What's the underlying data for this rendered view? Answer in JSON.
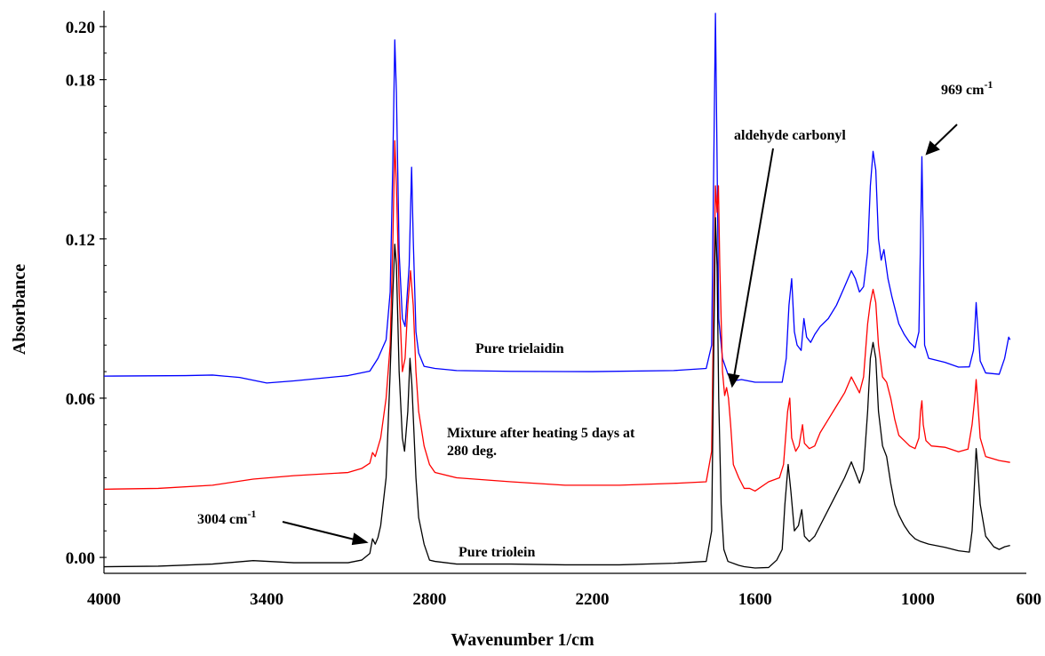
{
  "chart_data": {
    "type": "line",
    "title": "",
    "xlabel": "Wavenumber 1/cm",
    "ylabel": "Absorbance",
    "xlim": [
      4000,
      600
    ],
    "ylim": [
      -0.006,
      0.206
    ],
    "x_ticks": [
      4000,
      3400,
      2800,
      2200,
      1600,
      1000,
      600
    ],
    "x_tick_labels": [
      "4000",
      "3400",
      "2800",
      "2200",
      "1600",
      "1000",
      "600"
    ],
    "y_ticks": [
      0.0,
      0.06,
      0.12,
      0.18,
      0.2
    ],
    "y_tick_labels": [
      "0.00",
      "0.06",
      "0.12",
      "0.18",
      "0.20"
    ],
    "grid": false,
    "legend": "none",
    "series": [
      {
        "label_text": "Pure trielaidin",
        "color": "#0000ff",
        "points": [
          [
            4000,
            0.0683
          ],
          [
            3700,
            0.0685
          ],
          [
            3600,
            0.0687
          ],
          [
            3500,
            0.0678
          ],
          [
            3400,
            0.0657
          ],
          [
            3300,
            0.0665
          ],
          [
            3100,
            0.0685
          ],
          [
            3020,
            0.0702
          ],
          [
            2990,
            0.075
          ],
          [
            2960,
            0.082
          ],
          [
            2945,
            0.1
          ],
          [
            2935,
            0.15
          ],
          [
            2928,
            0.195
          ],
          [
            2922,
            0.175
          ],
          [
            2912,
            0.115
          ],
          [
            2900,
            0.09
          ],
          [
            2890,
            0.087
          ],
          [
            2875,
            0.11
          ],
          [
            2866,
            0.147
          ],
          [
            2860,
            0.12
          ],
          [
            2850,
            0.085
          ],
          [
            2840,
            0.077
          ],
          [
            2820,
            0.072
          ],
          [
            2780,
            0.0712
          ],
          [
            2700,
            0.0704
          ],
          [
            2500,
            0.0701
          ],
          [
            2200,
            0.07
          ],
          [
            1900,
            0.0704
          ],
          [
            1780,
            0.0712
          ],
          [
            1760,
            0.08
          ],
          [
            1752,
            0.15
          ],
          [
            1746,
            0.205
          ],
          [
            1740,
            0.15
          ],
          [
            1734,
            0.09
          ],
          [
            1720,
            0.075
          ],
          [
            1700,
            0.069
          ],
          [
            1680,
            0.0665
          ],
          [
            1650,
            0.067
          ],
          [
            1600,
            0.066
          ],
          [
            1500,
            0.066
          ],
          [
            1485,
            0.075
          ],
          [
            1475,
            0.095
          ],
          [
            1465,
            0.105
          ],
          [
            1455,
            0.085
          ],
          [
            1445,
            0.08
          ],
          [
            1430,
            0.078
          ],
          [
            1420,
            0.09
          ],
          [
            1410,
            0.083
          ],
          [
            1395,
            0.081
          ],
          [
            1380,
            0.084
          ],
          [
            1360,
            0.087
          ],
          [
            1330,
            0.09
          ],
          [
            1300,
            0.095
          ],
          [
            1270,
            0.102
          ],
          [
            1245,
            0.108
          ],
          [
            1230,
            0.105
          ],
          [
            1215,
            0.1
          ],
          [
            1200,
            0.102
          ],
          [
            1185,
            0.115
          ],
          [
            1175,
            0.14
          ],
          [
            1165,
            0.153
          ],
          [
            1155,
            0.146
          ],
          [
            1145,
            0.12
          ],
          [
            1135,
            0.112
          ],
          [
            1125,
            0.116
          ],
          [
            1110,
            0.105
          ],
          [
            1095,
            0.098
          ],
          [
            1070,
            0.088
          ],
          [
            1050,
            0.084
          ],
          [
            1030,
            0.081
          ],
          [
            1010,
            0.079
          ],
          [
            996,
            0.085
          ],
          [
            990,
            0.12
          ],
          [
            985,
            0.151
          ],
          [
            980,
            0.12
          ],
          [
            975,
            0.08
          ],
          [
            960,
            0.075
          ],
          [
            900,
            0.0735
          ],
          [
            850,
            0.0717
          ],
          [
            810,
            0.0718
          ],
          [
            795,
            0.078
          ],
          [
            790,
            0.086
          ],
          [
            785,
            0.096
          ],
          [
            780,
            0.088
          ],
          [
            770,
            0.074
          ],
          [
            750,
            0.0695
          ],
          [
            700,
            0.069
          ],
          [
            680,
            0.075
          ],
          [
            665,
            0.083
          ],
          [
            660,
            0.082
          ]
        ]
      },
      {
        "label_text": "Mixture after heating 5 days at 280 deg.",
        "color": "#ff0000",
        "points": [
          [
            4000,
            0.0257
          ],
          [
            3800,
            0.026
          ],
          [
            3600,
            0.0272
          ],
          [
            3450,
            0.0295
          ],
          [
            3300,
            0.0308
          ],
          [
            3100,
            0.032
          ],
          [
            3050,
            0.0335
          ],
          [
            3020,
            0.0355
          ],
          [
            3010,
            0.0395
          ],
          [
            3000,
            0.038
          ],
          [
            2980,
            0.045
          ],
          [
            2960,
            0.06
          ],
          [
            2945,
            0.08
          ],
          [
            2935,
            0.12
          ],
          [
            2928,
            0.157
          ],
          [
            2922,
            0.14
          ],
          [
            2912,
            0.1
          ],
          [
            2900,
            0.07
          ],
          [
            2890,
            0.075
          ],
          [
            2880,
            0.095
          ],
          [
            2870,
            0.108
          ],
          [
            2860,
            0.095
          ],
          [
            2850,
            0.07
          ],
          [
            2840,
            0.055
          ],
          [
            2820,
            0.042
          ],
          [
            2800,
            0.035
          ],
          [
            2780,
            0.032
          ],
          [
            2700,
            0.03
          ],
          [
            2500,
            0.0285
          ],
          [
            2300,
            0.0272
          ],
          [
            2100,
            0.0272
          ],
          [
            1900,
            0.0279
          ],
          [
            1780,
            0.0285
          ],
          [
            1760,
            0.04
          ],
          [
            1752,
            0.1
          ],
          [
            1746,
            0.14
          ],
          [
            1740,
            0.13
          ],
          [
            1735,
            0.14
          ],
          [
            1730,
            0.11
          ],
          [
            1720,
            0.07
          ],
          [
            1712,
            0.061
          ],
          [
            1705,
            0.064
          ],
          [
            1698,
            0.06
          ],
          [
            1690,
            0.05
          ],
          [
            1680,
            0.035
          ],
          [
            1660,
            0.03
          ],
          [
            1640,
            0.026
          ],
          [
            1620,
            0.026
          ],
          [
            1600,
            0.025
          ],
          [
            1550,
            0.0285
          ],
          [
            1510,
            0.03
          ],
          [
            1495,
            0.035
          ],
          [
            1480,
            0.055
          ],
          [
            1472,
            0.06
          ],
          [
            1465,
            0.045
          ],
          [
            1450,
            0.04
          ],
          [
            1438,
            0.042
          ],
          [
            1425,
            0.05
          ],
          [
            1418,
            0.043
          ],
          [
            1400,
            0.041
          ],
          [
            1380,
            0.042
          ],
          [
            1360,
            0.047
          ],
          [
            1330,
            0.052
          ],
          [
            1300,
            0.057
          ],
          [
            1270,
            0.062
          ],
          [
            1245,
            0.068
          ],
          [
            1230,
            0.065
          ],
          [
            1215,
            0.062
          ],
          [
            1200,
            0.068
          ],
          [
            1185,
            0.088
          ],
          [
            1175,
            0.096
          ],
          [
            1165,
            0.101
          ],
          [
            1155,
            0.096
          ],
          [
            1145,
            0.08
          ],
          [
            1130,
            0.068
          ],
          [
            1115,
            0.066
          ],
          [
            1100,
            0.06
          ],
          [
            1085,
            0.052
          ],
          [
            1070,
            0.046
          ],
          [
            1050,
            0.044
          ],
          [
            1030,
            0.042
          ],
          [
            1010,
            0.041
          ],
          [
            996,
            0.045
          ],
          [
            990,
            0.055
          ],
          [
            985,
            0.059
          ],
          [
            980,
            0.05
          ],
          [
            970,
            0.044
          ],
          [
            950,
            0.042
          ],
          [
            900,
            0.0415
          ],
          [
            850,
            0.0398
          ],
          [
            815,
            0.0408
          ],
          [
            800,
            0.05
          ],
          [
            790,
            0.06
          ],
          [
            785,
            0.067
          ],
          [
            780,
            0.06
          ],
          [
            770,
            0.045
          ],
          [
            750,
            0.038
          ],
          [
            700,
            0.0365
          ],
          [
            660,
            0.0358
          ]
        ]
      },
      {
        "label_text": "Pure triolein",
        "color": "#000000",
        "points": [
          [
            4000,
            -0.0035
          ],
          [
            3800,
            -0.0033
          ],
          [
            3600,
            -0.0025
          ],
          [
            3450,
            -0.0012
          ],
          [
            3300,
            -0.002
          ],
          [
            3100,
            -0.002
          ],
          [
            3050,
            -0.001
          ],
          [
            3020,
            0.0015
          ],
          [
            3010,
            0.007
          ],
          [
            3000,
            0.005
          ],
          [
            2990,
            0.0075
          ],
          [
            2980,
            0.012
          ],
          [
            2960,
            0.03
          ],
          [
            2945,
            0.07
          ],
          [
            2935,
            0.1
          ],
          [
            2928,
            0.118
          ],
          [
            2922,
            0.11
          ],
          [
            2912,
            0.07
          ],
          [
            2900,
            0.045
          ],
          [
            2892,
            0.04
          ],
          [
            2880,
            0.055
          ],
          [
            2872,
            0.075
          ],
          [
            2865,
            0.065
          ],
          [
            2850,
            0.03
          ],
          [
            2840,
            0.015
          ],
          [
            2820,
            0.005
          ],
          [
            2800,
            -0.001
          ],
          [
            2780,
            -0.0015
          ],
          [
            2700,
            -0.0025
          ],
          [
            2500,
            -0.0025
          ],
          [
            2300,
            -0.0028
          ],
          [
            2100,
            -0.0028
          ],
          [
            1900,
            -0.0022
          ],
          [
            1780,
            -0.0015
          ],
          [
            1760,
            0.01
          ],
          [
            1752,
            0.08
          ],
          [
            1746,
            0.128
          ],
          [
            1740,
            0.11
          ],
          [
            1734,
            0.06
          ],
          [
            1725,
            0.02
          ],
          [
            1715,
            0.003
          ],
          [
            1700,
            -0.0015
          ],
          [
            1660,
            -0.003
          ],
          [
            1640,
            -0.0035
          ],
          [
            1600,
            -0.004
          ],
          [
            1550,
            -0.0038
          ],
          [
            1520,
            -0.001
          ],
          [
            1500,
            0.003
          ],
          [
            1490,
            0.02
          ],
          [
            1478,
            0.035
          ],
          [
            1468,
            0.025
          ],
          [
            1455,
            0.01
          ],
          [
            1440,
            0.012
          ],
          [
            1428,
            0.018
          ],
          [
            1418,
            0.008
          ],
          [
            1400,
            0.006
          ],
          [
            1380,
            0.008
          ],
          [
            1360,
            0.012
          ],
          [
            1330,
            0.018
          ],
          [
            1300,
            0.024
          ],
          [
            1270,
            0.03
          ],
          [
            1245,
            0.036
          ],
          [
            1230,
            0.032
          ],
          [
            1215,
            0.028
          ],
          [
            1200,
            0.033
          ],
          [
            1185,
            0.055
          ],
          [
            1175,
            0.075
          ],
          [
            1165,
            0.081
          ],
          [
            1155,
            0.075
          ],
          [
            1145,
            0.055
          ],
          [
            1130,
            0.042
          ],
          [
            1115,
            0.038
          ],
          [
            1100,
            0.028
          ],
          [
            1085,
            0.02
          ],
          [
            1070,
            0.016
          ],
          [
            1050,
            0.012
          ],
          [
            1030,
            0.009
          ],
          [
            1010,
            0.007
          ],
          [
            990,
            0.006
          ],
          [
            960,
            0.005
          ],
          [
            900,
            0.0038
          ],
          [
            850,
            0.0025
          ],
          [
            810,
            0.002
          ],
          [
            800,
            0.01
          ],
          [
            790,
            0.03
          ],
          [
            785,
            0.041
          ],
          [
            780,
            0.035
          ],
          [
            770,
            0.02
          ],
          [
            750,
            0.008
          ],
          [
            720,
            0.004
          ],
          [
            700,
            0.003
          ],
          [
            680,
            0.004
          ],
          [
            660,
            0.0045
          ]
        ]
      }
    ],
    "annotations": [
      {
        "text": "Pure trielaidin"
      },
      {
        "text": "Mixture after heating 5 days at"
      },
      {
        "text": "280 deg."
      },
      {
        "text": "Pure triolein"
      },
      {
        "text": "aldehyde carbonyl"
      },
      {
        "text": "3004 cm",
        "sup": "-1"
      },
      {
        "text": "969 cm",
        "sup": "-1"
      }
    ]
  }
}
